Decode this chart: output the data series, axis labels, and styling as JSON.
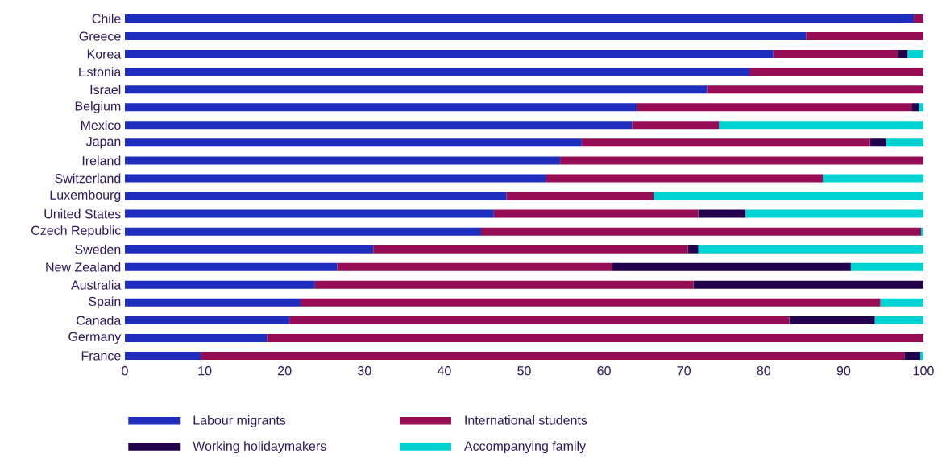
{
  "chart_data": {
    "type": "bar",
    "orientation": "horizontal",
    "stacked": true,
    "legend": "bottom",
    "categories": [
      "Chile",
      "Greece",
      "Korea",
      "Estonia",
      "Israel",
      "Belgium",
      "Mexico",
      "Japan",
      "Ireland",
      "Switzerland",
      "Luxembourg",
      "United States",
      "Czech Republic",
      "Sweden",
      "New Zealand",
      "Australia",
      "Spain",
      "Canada",
      "Germany",
      "France"
    ],
    "series": [
      {
        "name": "Labour migrants",
        "color": "#1f2dbf",
        "values": [
          98.8,
          85.3,
          81.2,
          78.2,
          72.9,
          64.1,
          63.5,
          57.2,
          54.5,
          52.7,
          47.8,
          46.2,
          44.6,
          31.1,
          26.6,
          23.8,
          22.0,
          20.6,
          17.8,
          9.5
        ]
      },
      {
        "name": "International students",
        "color": "#960c55",
        "values": [
          1.2,
          14.7,
          15.6,
          21.8,
          27.1,
          34.4,
          10.9,
          36.1,
          45.5,
          34.7,
          18.4,
          25.6,
          55.1,
          39.4,
          34.4,
          47.4,
          72.6,
          62.6,
          82.2,
          88.1
        ]
      },
      {
        "name": "Working holidaymakers",
        "color": "#22004c",
        "values": [
          0,
          0,
          1.2,
          0,
          0,
          0.9,
          0,
          2.0,
          0,
          0,
          0,
          5.9,
          0,
          1.3,
          29.9,
          28.8,
          0,
          10.7,
          0,
          2.0
        ]
      },
      {
        "name": "Accompanying family",
        "color": "#00d2d2",
        "values": [
          0,
          0,
          2.0,
          0,
          0,
          0.6,
          25.6,
          4.7,
          0,
          12.6,
          33.8,
          22.3,
          0.3,
          28.2,
          9.1,
          0,
          5.4,
          6.1,
          0,
          0.4
        ]
      }
    ],
    "xlim": [
      0,
      100
    ],
    "xticks": [
      0,
      10,
      20,
      30,
      40,
      50,
      60,
      70,
      80,
      90,
      100
    ]
  }
}
